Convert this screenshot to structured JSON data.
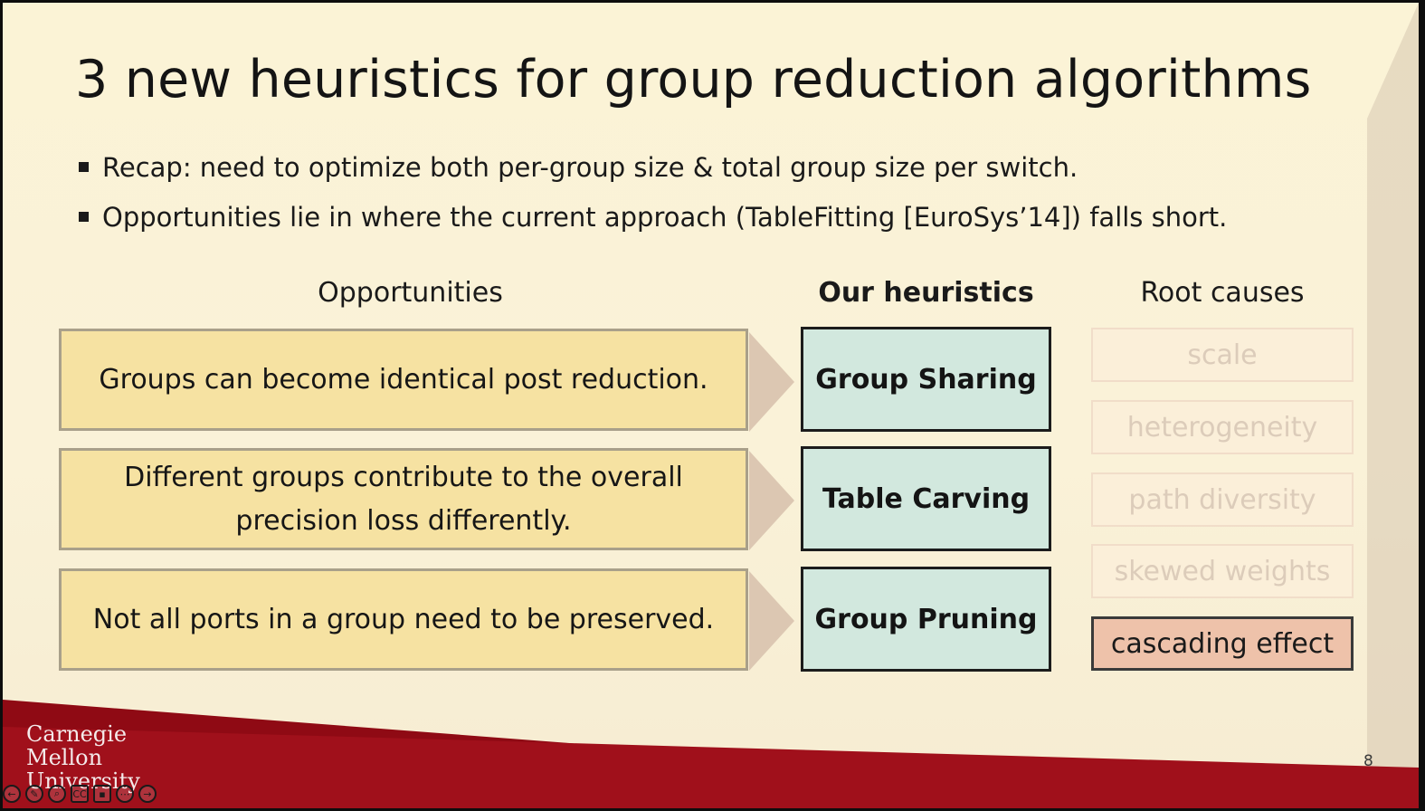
{
  "slide": {
    "title": "3 new heuristics for group reduction algorithms",
    "bullets": [
      "Recap: need to optimize both per-group size & total group size per switch.",
      "Opportunities lie in where the current approach (TableFitting [EuroSys’14]) falls short."
    ],
    "columns": {
      "opportunities": "Opportunities",
      "heuristics": "Our heuristics",
      "root_causes": "Root causes"
    },
    "rows": [
      {
        "opportunity_lines": [
          "Groups can become identical post reduction."
        ],
        "heuristic": "Group Sharing"
      },
      {
        "opportunity_lines": [
          "Different groups contribute to the overall",
          "precision loss differently."
        ],
        "heuristic": "Table Carving"
      },
      {
        "opportunity_lines": [
          "Not all ports in a group need to be preserved."
        ],
        "heuristic": "Group Pruning"
      }
    ],
    "root_causes": [
      {
        "label": "scale",
        "highlighted": false
      },
      {
        "label": "heterogeneity",
        "highlighted": false
      },
      {
        "label": "path diversity",
        "highlighted": false
      },
      {
        "label": "skewed weights",
        "highlighted": false
      },
      {
        "label": "cascading effect",
        "highlighted": true
      }
    ],
    "logo_lines": [
      "Carnegie",
      "Mellon",
      "University"
    ],
    "page_number": "8"
  },
  "player_controls": [
    {
      "name": "previous-slide-icon",
      "glyph": "←"
    },
    {
      "name": "pen-icon",
      "glyph": "✎"
    },
    {
      "name": "zoom-icon",
      "glyph": "⌕"
    },
    {
      "name": "captions-icon",
      "glyph": "CC"
    },
    {
      "name": "camera-icon",
      "glyph": "▪"
    },
    {
      "name": "more-options-icon",
      "glyph": "⋯"
    },
    {
      "name": "next-slide-icon",
      "glyph": "→"
    }
  ],
  "colors": {
    "background": "#faf2d8",
    "opportunity_fill": "#f6e2a2",
    "heuristic_fill": "#d2e8de",
    "highlight_fill": "#eec2aa",
    "cmu_red": "#8f0a14"
  }
}
